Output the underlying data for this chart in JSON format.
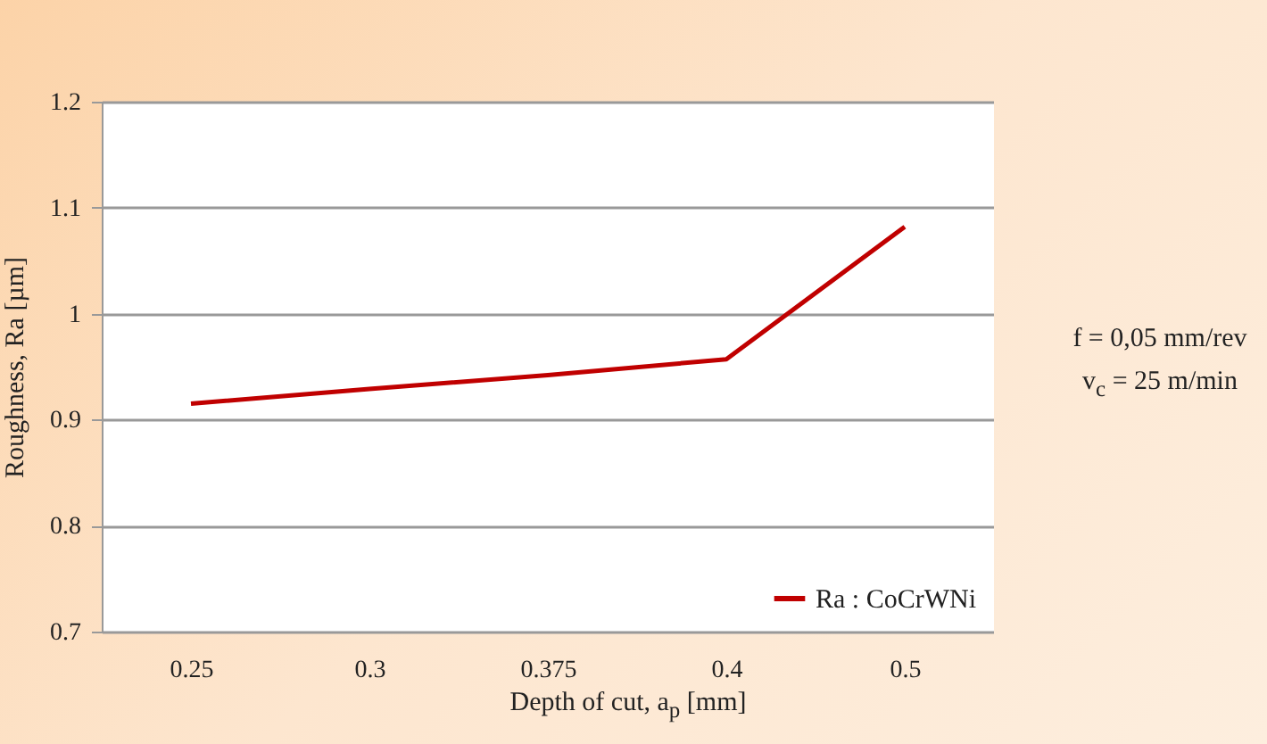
{
  "chart_data": {
    "type": "line",
    "categories": [
      "0.25",
      "0.3",
      "0.375",
      "0.4",
      "0.5"
    ],
    "series": [
      {
        "name": "Ra : CoCrWNi",
        "color": "#c00000",
        "values": [
          0.915,
          0.929,
          0.942,
          0.957,
          1.082
        ]
      }
    ],
    "xlabel": "Depth of cut, a$_{p}$ [mm]",
    "ylabel": "Roughness, Ra  [µm]",
    "ylim": [
      0.7,
      1.2
    ],
    "yticks": [
      0.7,
      0.8,
      0.9,
      1,
      1.1,
      1.2
    ],
    "grid": "y",
    "legend": "bottom right",
    "marker": "none",
    "line_style": "solid",
    "annotations": [
      "f = 0,05 mm/rev",
      "v$_{c}$ = 25 m/min"
    ]
  }
}
